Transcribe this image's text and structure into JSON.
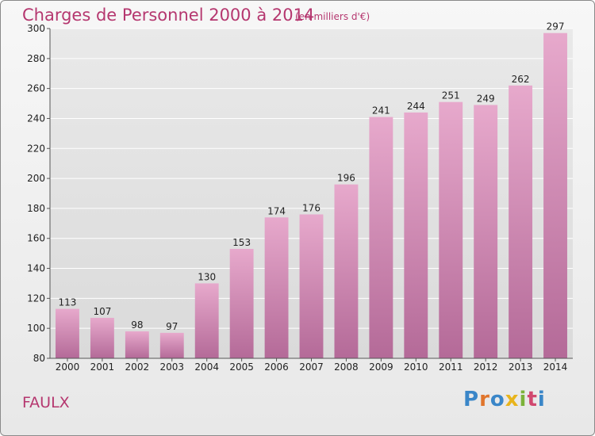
{
  "header": {
    "title": "Charges de Personnel 2000 à 2014",
    "subtitle": "(en milliers d'€)"
  },
  "footer": {
    "place": "FAULX",
    "logo": [
      "P",
      "r",
      "o",
      "x",
      "i",
      "t",
      "i"
    ]
  },
  "chart_data": {
    "type": "bar",
    "title": "Charges de Personnel 2000 à 2014",
    "subtitle": "(en milliers d'€)",
    "xlabel": "",
    "ylabel": "",
    "categories": [
      "2000",
      "2001",
      "2002",
      "2003",
      "2004",
      "2005",
      "2006",
      "2007",
      "2008",
      "2009",
      "2010",
      "2011",
      "2012",
      "2013",
      "2014"
    ],
    "values": [
      113,
      107,
      98,
      97,
      130,
      153,
      174,
      176,
      196,
      241,
      244,
      251,
      249,
      262,
      297
    ],
    "ylim": [
      80,
      300
    ],
    "yticks": [
      80,
      100,
      120,
      140,
      160,
      180,
      200,
      220,
      240,
      260,
      280,
      300
    ],
    "grid": true,
    "legend": "none",
    "bar_color_top": "#e7a9cc",
    "bar_color_bottom": "#b46a98"
  }
}
